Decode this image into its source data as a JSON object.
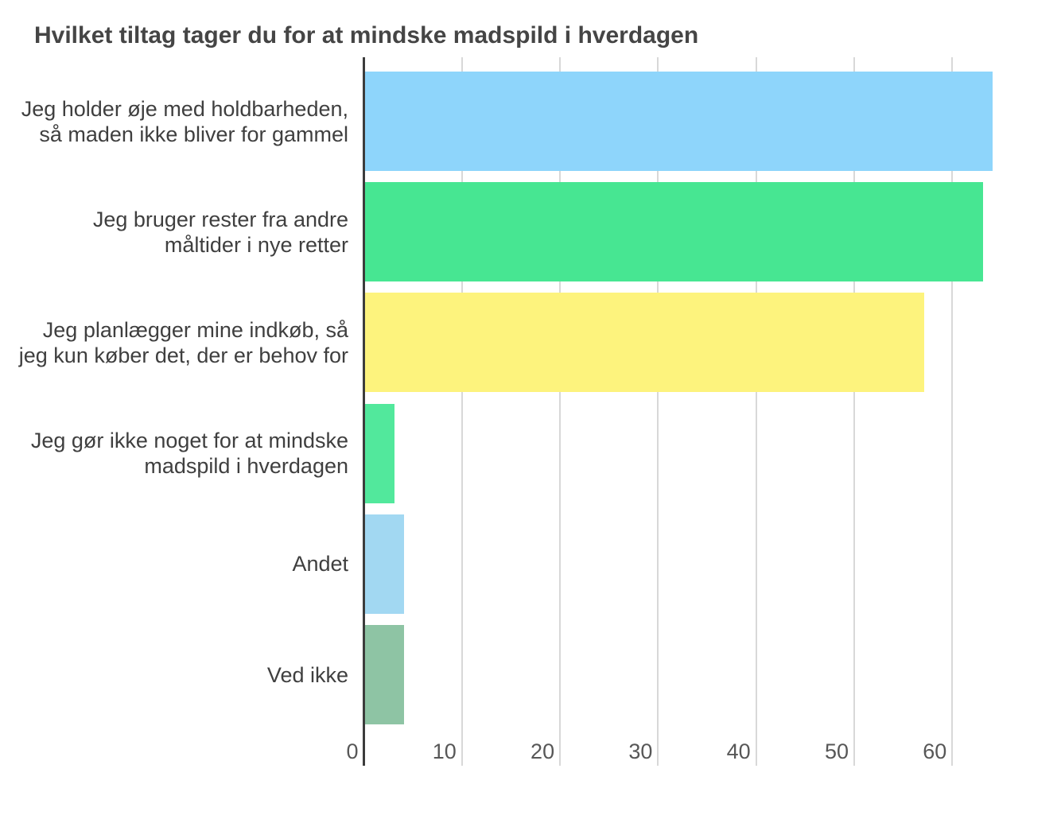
{
  "chart_data": {
    "type": "bar",
    "orientation": "horizontal",
    "title": "Hvilket tiltag tager du for at mindske madspild i hverdagen",
    "categories": [
      "Jeg holder øje med holdbarheden,\nså maden ikke bliver for gammel",
      "Jeg bruger rester fra andre\nmåltider i nye retter",
      "Jeg planlægger mine indkøb, så\njeg kun køber det, der er behov for",
      "Jeg gør ikke noget for at mindske\nmadspild i hverdagen",
      "Andet",
      "Ved ikke"
    ],
    "values": [
      64,
      63,
      57,
      3,
      4,
      4
    ],
    "bar_colors": [
      "#8ed5fb",
      "#47e692",
      "#fdf37d",
      "#52e89c",
      "#a2d8f2",
      "#8ec4a4"
    ],
    "xlabel": "",
    "ylabel": "",
    "xlim": [
      0,
      71
    ],
    "xticks": [
      0,
      10,
      20,
      30,
      40,
      50,
      60
    ],
    "grid": "vertical-gridlines",
    "legend": "none",
    "colors": {
      "title_text": "#454545",
      "category_label_text": "#3f3f3f",
      "tick_label_text": "#575757",
      "axis_line": "#3c3c3c",
      "gridline": "#d8d8d8",
      "background": "#ffffff"
    }
  }
}
